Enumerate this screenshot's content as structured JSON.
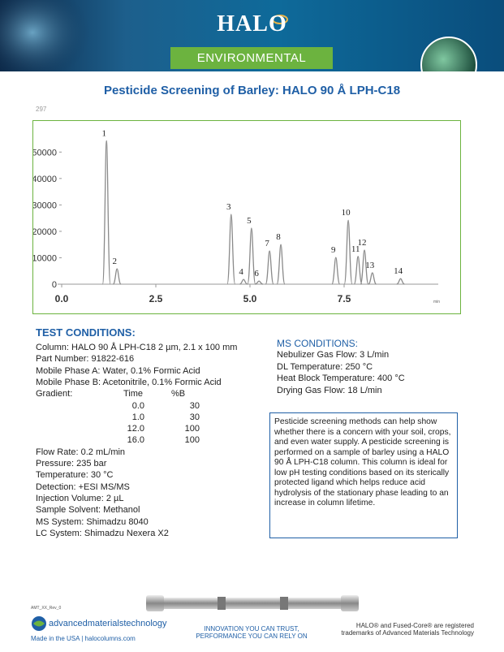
{
  "header": {
    "brand": "HALO",
    "category": "ENVIRONMENTAL",
    "title": "Pesticide Screening of Barley: HALO 90 Å LPH-C18",
    "code": "297"
  },
  "chromatogram": {
    "type": "chromatogram",
    "x_label": "min",
    "xlim": [
      0,
      10
    ],
    "ylim": [
      0,
      55000
    ],
    "xticks": [
      {
        "value": 0,
        "label": "0.0"
      },
      {
        "value": 2.5,
        "label": "2.5"
      },
      {
        "value": 5,
        "label": "5.0"
      },
      {
        "value": 7.5,
        "label": "7.5"
      }
    ],
    "yticks": [
      0,
      10000,
      20000,
      30000,
      40000,
      50000
    ],
    "color": "#8a8a8a",
    "peaks": [
      {
        "label": "1",
        "time": 1.19,
        "height": 54300
      },
      {
        "label": "2",
        "time": 1.47,
        "height": 5800
      },
      {
        "label": "3",
        "time": 4.5,
        "height": 26400
      },
      {
        "label": "4",
        "time": 4.83,
        "height": 1800
      },
      {
        "label": "5",
        "time": 5.04,
        "height": 21200
      },
      {
        "label": "6",
        "time": 5.24,
        "height": 1200
      },
      {
        "label": "7",
        "time": 5.52,
        "height": 12600
      },
      {
        "label": "8",
        "time": 5.82,
        "height": 15000
      },
      {
        "label": "9",
        "time": 7.28,
        "height": 10100
      },
      {
        "label": "10",
        "time": 7.61,
        "height": 24200
      },
      {
        "label": "11",
        "time": 7.87,
        "height": 10500
      },
      {
        "label": "12",
        "time": 8.04,
        "height": 12900
      },
      {
        "label": "13",
        "time": 8.25,
        "height": 4300
      },
      {
        "label": "14",
        "time": 9.0,
        "height": 2100
      }
    ]
  },
  "test_conditions": {
    "heading": "TEST CONDITIONS:",
    "lines_top": [
      "Column: HALO 90 Å LPH-C18 2 µm, 2.1 x 100 mm",
      "Part Number: 91822-616",
      "Mobile Phase A: Water, 0.1% Formic Acid",
      "Mobile Phase B: Acetonitrile, 0.1% Formic Acid"
    ],
    "gradient": {
      "label": "Gradient:",
      "columns": [
        "Time",
        "%B"
      ],
      "rows": [
        [
          "0.0",
          "30"
        ],
        [
          "1.0",
          "30"
        ],
        [
          "12.0",
          "100"
        ],
        [
          "16.0",
          "100"
        ]
      ]
    },
    "lines_bottom": [
      "Flow Rate: 0.2 mL/min",
      "Pressure: 235 bar",
      "Temperature: 30 °C",
      "Detection: +ESI MS/MS",
      "Injection Volume: 2 µL",
      "Sample Solvent: Methanol",
      "MS System: Shimadzu 8040",
      "LC System: Shimadzu Nexera X2"
    ]
  },
  "ms_conditions": {
    "heading": "MS CONDITIONS:",
    "lines": [
      "Nebulizer Gas Flow: 3 L/min",
      "DL Temperature: 250 °C",
      "Heat Block Temperature: 400 °C",
      "Drying Gas Flow: 18 L/min"
    ]
  },
  "description": "Pesticide screening methods can help show whether there is a concern with your soil, crops, and even water supply. A pesticide screening is performed on a sample of barley using a HALO 90 Å LPH-C18 column. This column is ideal for low pH testing conditions based on its sterically protected ligand which helps reduce acid hydrolysis of the stationary phase leading to an increase in column lifetime.",
  "footer": {
    "doc_code": "AMT_XX_Rev_0",
    "company": "advancedmaterialstechnology",
    "made_in": "Made in the USA | halocolumns.com",
    "tagline": [
      "INNOVATION YOU CAN TRUST,",
      "PERFORMANCE YOU CAN RELY ON"
    ],
    "trademark": [
      "HALO® and Fused-Core® are registered",
      "trademarks of Advanced Materials Technology"
    ]
  }
}
